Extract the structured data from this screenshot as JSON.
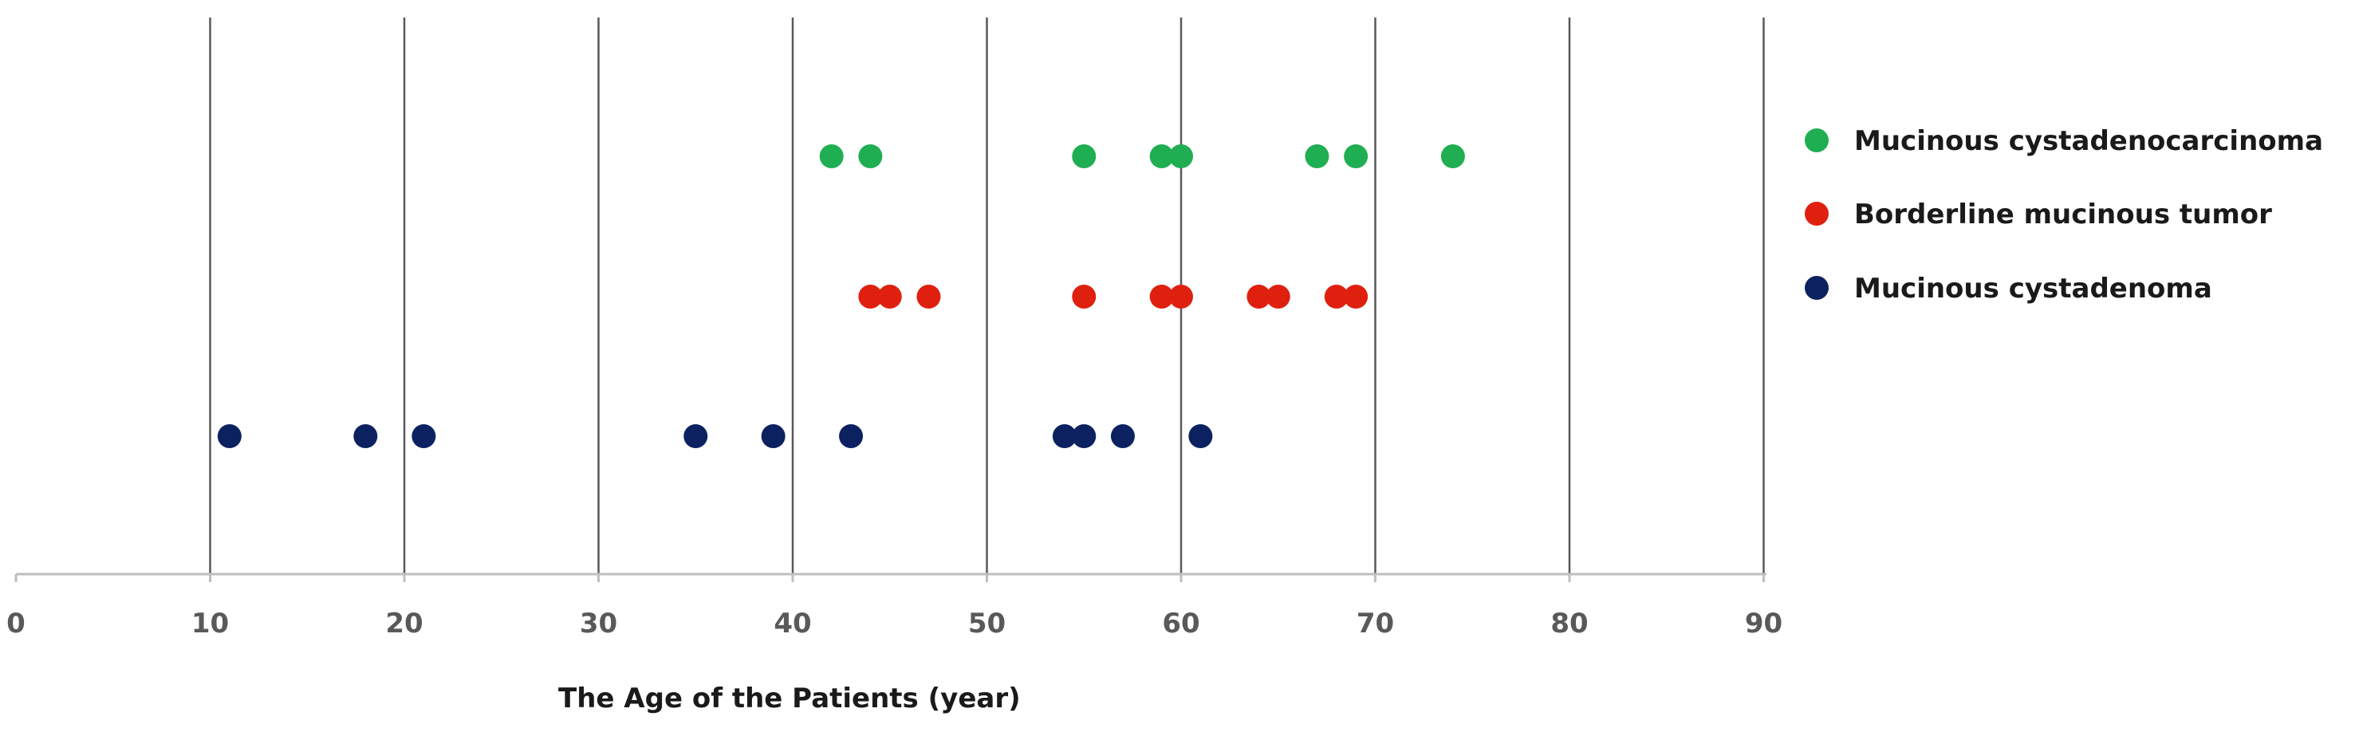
{
  "chart_data": {
    "type": "scatter",
    "title": "",
    "xlabel": "The Age of the Patients (year)",
    "ylabel": "",
    "xlim": [
      0,
      90
    ],
    "x_ticks": [
      0,
      10,
      20,
      30,
      40,
      50,
      60,
      70,
      80,
      90
    ],
    "x_tick_labels": [
      "0",
      "10",
      "20",
      "30",
      "40",
      "50",
      "60",
      "70",
      "80",
      "90"
    ],
    "grid": "vertical lines at each x tick",
    "legend_position": "right",
    "series": [
      {
        "name": "Mucinous cystadenocarcinoma",
        "color": "#1fae52",
        "x": [
          42,
          44,
          55,
          59,
          60,
          67,
          69,
          74
        ]
      },
      {
        "name": "Borderline mucinous tumor",
        "color": "#e0200f",
        "x": [
          44,
          45,
          47,
          55,
          59,
          60,
          64,
          65,
          68,
          69
        ]
      },
      {
        "name": "Mucinous cystadenoma",
        "color": "#0c2160",
        "x": [
          11,
          18,
          21,
          35,
          39,
          43,
          54,
          55,
          57,
          61
        ]
      }
    ]
  }
}
